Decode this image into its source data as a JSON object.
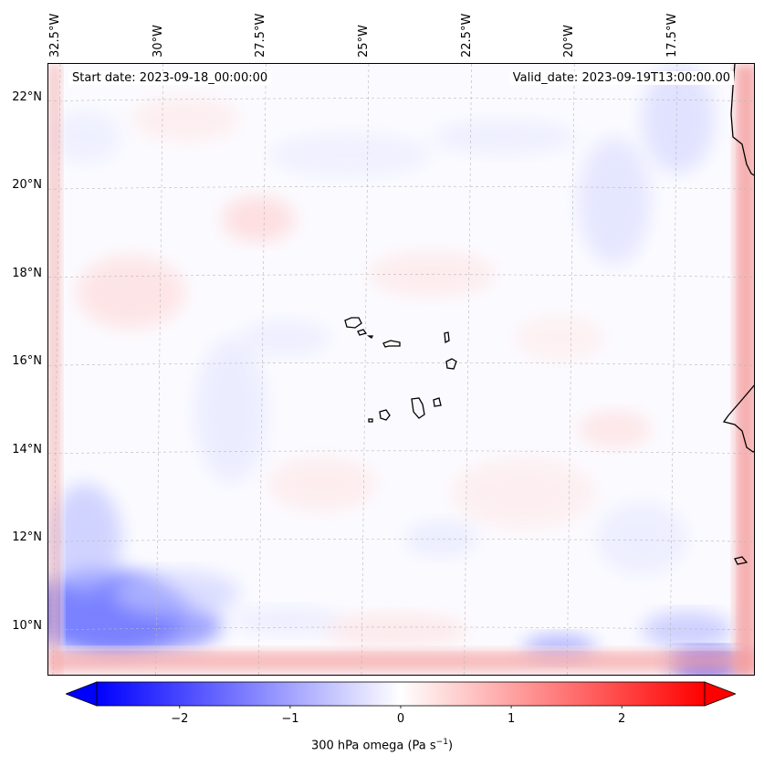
{
  "map": {
    "header": {
      "start": "Start date: 2023-09-18_00:00:00",
      "valid": "Valid_date: 2023-09-19T13:00:00.00"
    },
    "lon_range": [
      -32.7,
      -15.5
    ],
    "lat_range": [
      8.9,
      22.8
    ],
    "lon_ticks": [
      -32.5,
      -30,
      -27.5,
      -25,
      -22.5,
      -20,
      -17.5
    ],
    "lon_tick_labels": [
      "32.5°W",
      "30°W",
      "27.5°W",
      "25°W",
      "22.5°W",
      "20°W",
      "17.5°W"
    ],
    "lat_ticks": [
      10,
      12,
      14,
      16,
      18,
      20,
      22
    ],
    "lat_tick_labels": [
      "10°N",
      "12°N",
      "14°N",
      "16°N",
      "18°N",
      "20°N",
      "22°N"
    ],
    "gridlines": true,
    "features": [
      "cape-verde-islands",
      "west-african-coastline"
    ]
  },
  "colorbar": {
    "colormap": "bwr",
    "min_color": "#0000ff",
    "mid_color": "#ffffff",
    "max_color": "#ff0000",
    "range": [
      -2.75,
      2.75
    ],
    "ticks": [
      "−2",
      "−1",
      "0",
      "1",
      "2"
    ],
    "tick_values": [
      -2,
      -1,
      0,
      1,
      2
    ],
    "label_text": "300 hPa omega (Pa s",
    "label_exp": "−1",
    "label_close": ")"
  }
}
